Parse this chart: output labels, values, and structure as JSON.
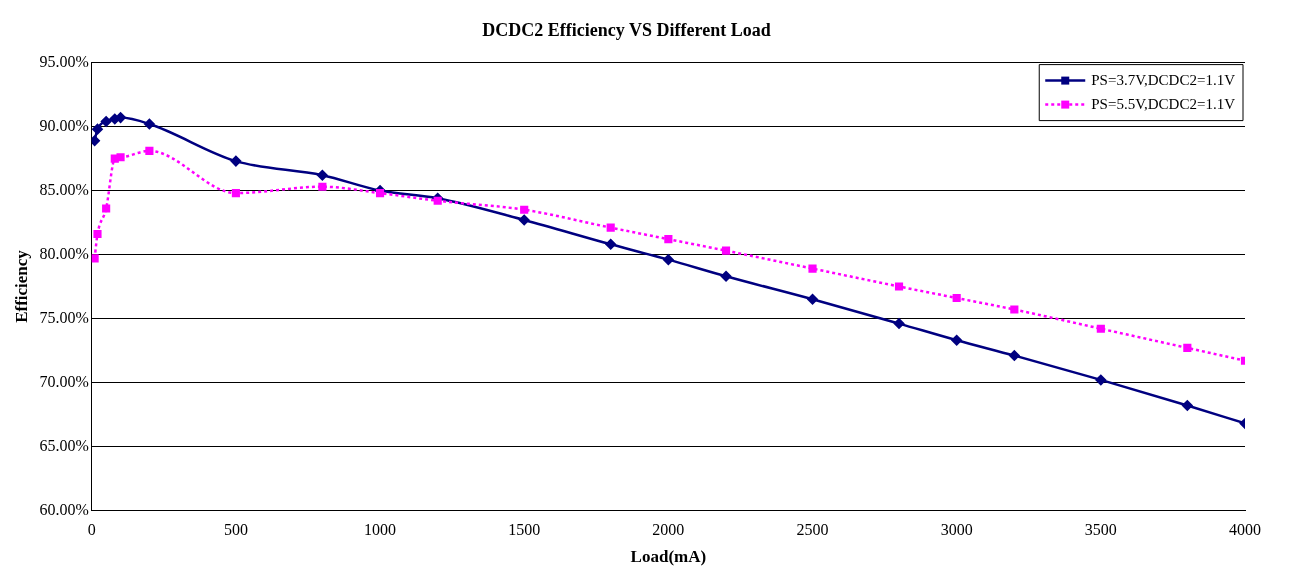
{
  "chart_data": {
    "type": "line",
    "title": "DCDC2 Efficiency VS Different Load",
    "xlabel": "Load(mA)",
    "ylabel": "Efficiency",
    "x": [
      10,
      20,
      50,
      80,
      100,
      200,
      500,
      800,
      1000,
      1200,
      1500,
      1800,
      2000,
      2200,
      2500,
      2800,
      3000,
      3200,
      3500,
      3800,
      4000
    ],
    "series": [
      {
        "name": "PS=3.7V,DCDC2=1.1V",
        "color": "#000080",
        "marker": "diamond",
        "line_style": "solid",
        "values": [
          88.9,
          89.8,
          90.4,
          90.6,
          90.7,
          90.2,
          87.3,
          86.2,
          85.0,
          84.4,
          82.7,
          80.8,
          79.6,
          78.3,
          76.5,
          74.6,
          73.3,
          72.1,
          70.2,
          68.2,
          66.8
        ]
      },
      {
        "name": "PS=5.5V,DCDC2=1.1V",
        "color": "#ff00ff",
        "marker": "square",
        "line_style": "dotted",
        "values": [
          79.7,
          81.6,
          83.6,
          87.5,
          87.6,
          88.1,
          84.8,
          85.3,
          84.8,
          84.2,
          83.5,
          82.1,
          81.2,
          80.3,
          78.9,
          77.5,
          76.6,
          75.7,
          74.2,
          72.7,
          71.7
        ]
      }
    ],
    "xlim": [
      0,
      4000
    ],
    "xticks": [
      0,
      500,
      1000,
      1500,
      2000,
      2500,
      3000,
      3500,
      4000
    ],
    "ylim": [
      60,
      95
    ],
    "yticks": [
      {
        "value": 60,
        "label": "60.00%"
      },
      {
        "value": 65,
        "label": "65.00%"
      },
      {
        "value": 70,
        "label": "70.00%"
      },
      {
        "value": 75,
        "label": "75.00%"
      },
      {
        "value": 80,
        "label": "80.00%"
      },
      {
        "value": 85,
        "label": "85.00%"
      },
      {
        "value": 90,
        "label": "90.00%"
      },
      {
        "value": 95,
        "label": "95.00%"
      }
    ],
    "grid": "y",
    "legend": "top right"
  }
}
